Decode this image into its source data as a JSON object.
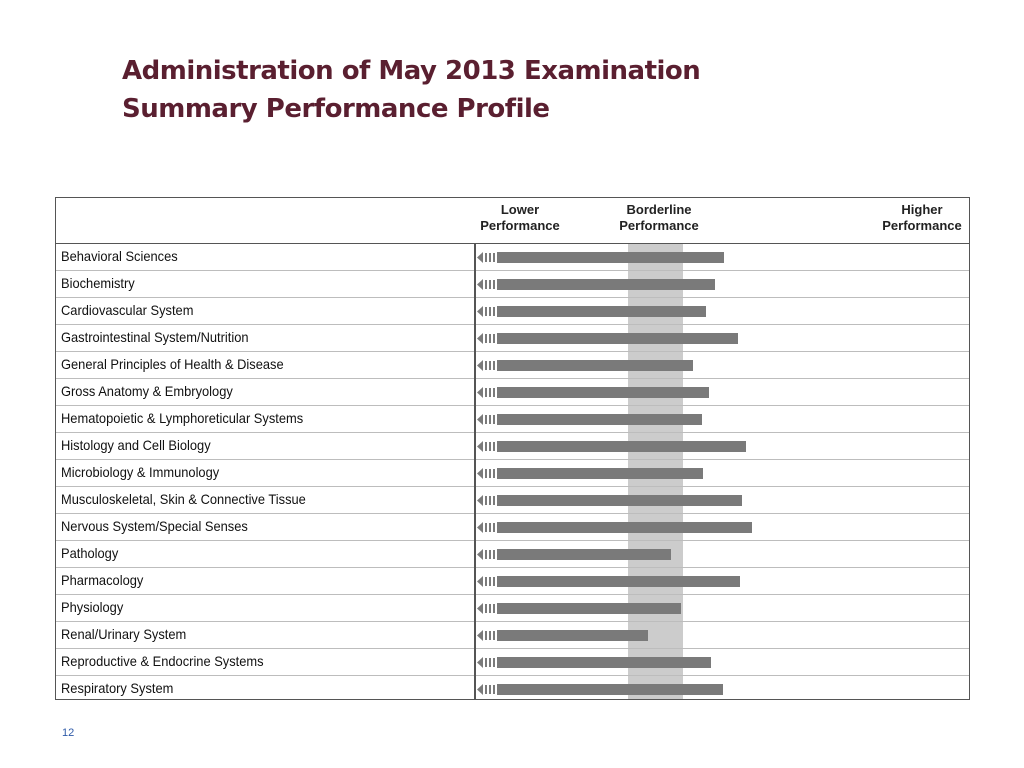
{
  "slide": {
    "title_line1": "Administration of May 2013 Examination",
    "title_line2": "Summary Performance Profile",
    "page_number": "12"
  },
  "chart_data": {
    "type": "bar",
    "orientation": "horizontal",
    "title": "",
    "xlabel": "",
    "ylabel": "",
    "xlim": [
      0,
      100
    ],
    "legend": "none",
    "header_labels": {
      "lower": [
        "Lower",
        "Performance"
      ],
      "borderline": [
        "Borderline",
        "Performance"
      ],
      "higher": [
        "Higher",
        "Performance"
      ]
    },
    "borderline_band": [
      31,
      42
    ],
    "colors": {
      "bar": "#7a7a7a",
      "band": "#cccccc",
      "title": "#5a1f30"
    },
    "categories": [
      "Behavioral Sciences",
      "Biochemistry",
      "Cardiovascular System",
      "Gastrointestinal System/Nutrition",
      "General Principles of Health & Disease",
      "Gross Anatomy & Embryology",
      "Hematopoietic & Lymphoreticular Systems",
      "Histology and Cell Biology",
      "Microbiology & Immunology",
      "Musculoskeletal, Skin & Connective Tissue",
      "Nervous System/Special Senses",
      "Pathology",
      "Pharmacology",
      "Physiology",
      "Renal/Urinary System",
      "Reproductive & Endocrine Systems",
      "Respiratory System"
    ],
    "values": [
      50.4,
      48.5,
      46.6,
      53.2,
      44.1,
      47.3,
      45.9,
      54.7,
      46.1,
      54.0,
      55.9,
      39.6,
      53.6,
      41.6,
      34.9,
      47.7,
      50.2
    ]
  }
}
